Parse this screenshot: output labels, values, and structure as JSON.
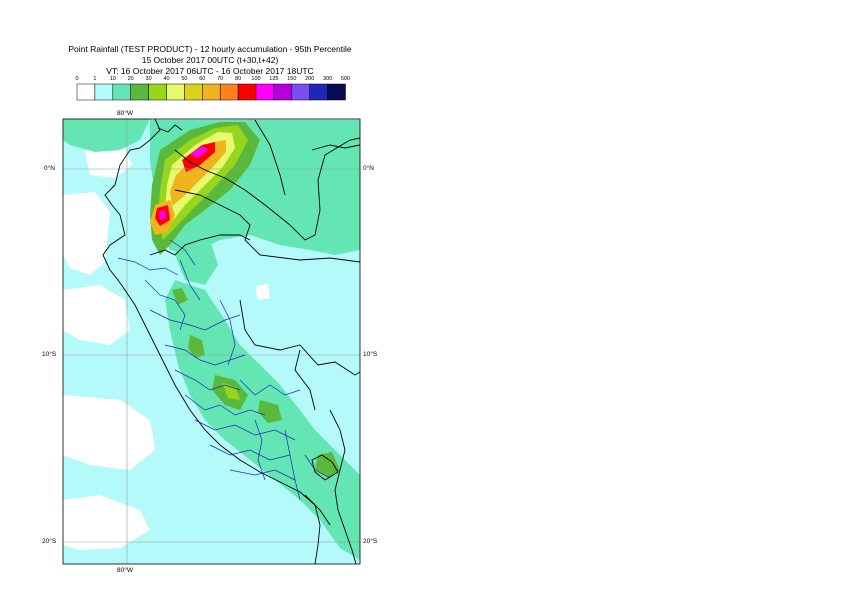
{
  "header": {
    "title_line1": "Point Rainfall (TEST PRODUCT) - 12 hourly accumulation - 95th Percentile",
    "title_line2": "15 October 2017 00UTC (t+30,t+42)",
    "title_line3": "VT: 16 October 2017 06UTC - 16 October 2017 18UTC"
  },
  "legend": {
    "ticks": [
      "0",
      "1",
      "10",
      "20",
      "30",
      "40",
      "50",
      "60",
      "70",
      "80",
      "100",
      "125",
      "150",
      "200",
      "300",
      "500"
    ],
    "colors": [
      "#ffffff",
      "#b4fafa",
      "#64e6b4",
      "#5ab93c",
      "#96d71e",
      "#e6fa6e",
      "#dcd21e",
      "#f0b41e",
      "#ff821e",
      "#ff0000",
      "#ff00ff",
      "#b400dc",
      "#7850f0",
      "#1e28b4",
      "#0a0a55"
    ]
  },
  "map": {
    "graticule": {
      "lon_top": "80°W",
      "lon_bottom": "80°W",
      "lat_left": [
        "0°N",
        "10°S",
        "20°S"
      ],
      "lat_right": [
        "0°N",
        "10°S",
        "20°S"
      ]
    },
    "colors": {
      "ocean_light": "#b4fafa",
      "land_green": "#64e6b4",
      "coast_black": "#000000",
      "admin_blue": "#1e28b4",
      "grid_grey": "#9a9a9a"
    }
  }
}
